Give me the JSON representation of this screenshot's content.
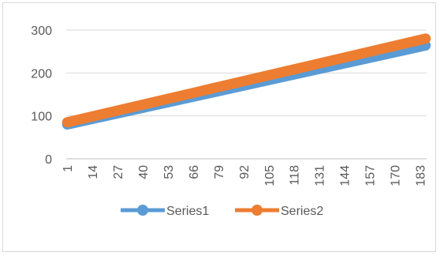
{
  "chart_data": {
    "type": "line",
    "title": "",
    "xlabel": "",
    "ylabel": "",
    "x_start": 1,
    "x_end": 186,
    "x_tick_labels": [
      "1",
      "14",
      "27",
      "40",
      "53",
      "66",
      "79",
      "92",
      "105",
      "118",
      "131",
      "144",
      "157",
      "170",
      "183"
    ],
    "ylim": [
      0,
      300
    ],
    "y_tick_labels": [
      "0",
      "100",
      "200",
      "300"
    ],
    "grid": "horizontal",
    "legend_position": "bottom",
    "series": [
      {
        "name": "Series1",
        "color": "#5b9bd5",
        "start": 80,
        "end": 264
      },
      {
        "name": "Series2",
        "color": "#ed7d31",
        "start": 85,
        "end": 280
      }
    ]
  }
}
